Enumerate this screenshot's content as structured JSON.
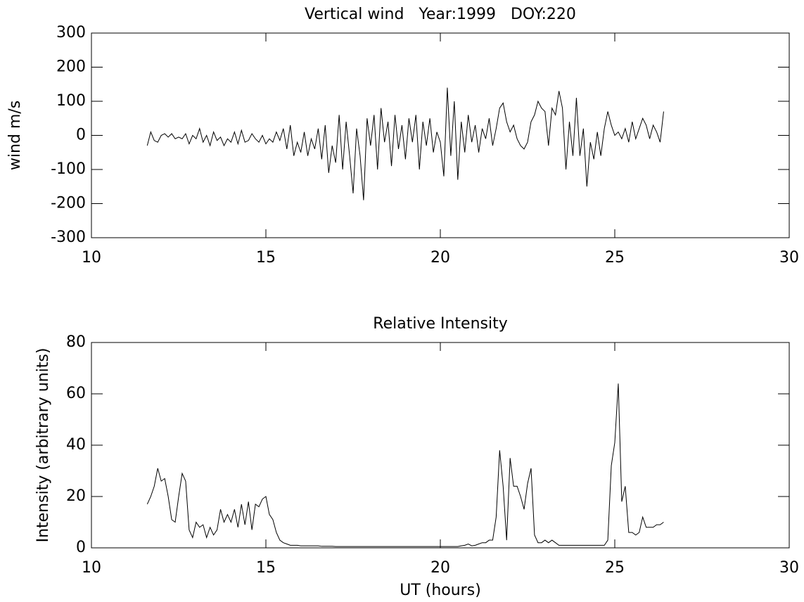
{
  "chart_data": [
    {
      "type": "line",
      "title": "Vertical wind   Year:1999   DOY:220",
      "ylabel": "wind m/s",
      "color": "#000000",
      "xlim": [
        10,
        30
      ],
      "xticks": [
        10,
        15,
        20,
        25,
        30
      ],
      "ylim": [
        -300,
        300
      ],
      "yticks": [
        -300,
        -200,
        -100,
        0,
        100,
        200,
        300
      ],
      "x": [
        11.6,
        11.7,
        11.8,
        11.9,
        12.0,
        12.1,
        12.2,
        12.3,
        12.4,
        12.5,
        12.6,
        12.7,
        12.8,
        12.9,
        13.0,
        13.1,
        13.2,
        13.3,
        13.4,
        13.5,
        13.6,
        13.7,
        13.8,
        13.9,
        14.0,
        14.1,
        14.2,
        14.3,
        14.4,
        14.5,
        14.6,
        14.7,
        14.8,
        14.9,
        15.0,
        15.1,
        15.2,
        15.3,
        15.4,
        15.5,
        15.6,
        15.7,
        15.8,
        15.9,
        16.0,
        16.1,
        16.2,
        16.3,
        16.4,
        16.5,
        16.6,
        16.7,
        16.8,
        16.9,
        17.0,
        17.1,
        17.2,
        17.3,
        17.4,
        17.5,
        17.6,
        17.7,
        17.8,
        17.9,
        18.0,
        18.1,
        18.2,
        18.3,
        18.4,
        18.5,
        18.6,
        18.7,
        18.8,
        18.9,
        19.0,
        19.1,
        19.2,
        19.3,
        19.4,
        19.5,
        19.6,
        19.7,
        19.8,
        19.9,
        20.0,
        20.1,
        20.2,
        20.3,
        20.4,
        20.5,
        20.6,
        20.7,
        20.8,
        20.9,
        21.0,
        21.1,
        21.2,
        21.3,
        21.4,
        21.5,
        21.6,
        21.7,
        21.8,
        21.9,
        22.0,
        22.1,
        22.2,
        22.3,
        22.4,
        22.5,
        22.6,
        22.7,
        22.8,
        22.9,
        23.0,
        23.1,
        23.2,
        23.3,
        23.4,
        23.5,
        23.6,
        23.7,
        23.8,
        23.9,
        24.0,
        24.1,
        24.2,
        24.3,
        24.4,
        24.5,
        24.6,
        24.7,
        24.8,
        24.9,
        25.0,
        25.1,
        25.2,
        25.3,
        25.4,
        25.5,
        25.6,
        25.7,
        25.8,
        25.9,
        26.0,
        26.1,
        26.2,
        26.3,
        26.4
      ],
      "values": [
        -30,
        10,
        -15,
        -20,
        0,
        5,
        -5,
        5,
        -10,
        -5,
        -10,
        5,
        -25,
        0,
        -10,
        20,
        -20,
        0,
        -30,
        10,
        -15,
        -5,
        -30,
        -10,
        -20,
        10,
        -25,
        15,
        -20,
        -15,
        5,
        -10,
        -20,
        0,
        -25,
        -10,
        -20,
        10,
        -15,
        20,
        -40,
        30,
        -60,
        -20,
        -50,
        10,
        -60,
        -10,
        -40,
        20,
        -70,
        30,
        -110,
        -30,
        -80,
        60,
        -100,
        40,
        -60,
        -170,
        20,
        -60,
        -190,
        50,
        -30,
        60,
        -100,
        80,
        -20,
        40,
        -90,
        60,
        -40,
        30,
        -70,
        50,
        -20,
        60,
        -100,
        40,
        -30,
        50,
        -50,
        10,
        -20,
        -120,
        140,
        -60,
        100,
        -130,
        40,
        -50,
        60,
        -20,
        30,
        -50,
        20,
        -10,
        50,
        -30,
        20,
        80,
        95,
        40,
        10,
        30,
        -10,
        -30,
        -40,
        -20,
        40,
        60,
        100,
        80,
        70,
        -30,
        80,
        60,
        130,
        80,
        -100,
        40,
        -60,
        110,
        -60,
        20,
        -150,
        -20,
        -70,
        10,
        -60,
        20,
        70,
        30,
        0,
        10,
        -10,
        20,
        -20,
        40,
        -10,
        20,
        50,
        30,
        -10,
        30,
        10,
        -20,
        70
      ]
    },
    {
      "type": "line",
      "title": "Relative Intensity",
      "xlabel": "UT (hours)",
      "ylabel": "Intensity (arbitrary units)",
      "color": "#000000",
      "xlim": [
        10,
        30
      ],
      "xticks": [
        10,
        15,
        20,
        25,
        30
      ],
      "ylim": [
        0,
        80
      ],
      "yticks": [
        0,
        20,
        40,
        60,
        80
      ],
      "x": [
        11.6,
        11.7,
        11.8,
        11.9,
        12.0,
        12.1,
        12.2,
        12.3,
        12.4,
        12.5,
        12.6,
        12.7,
        12.8,
        12.9,
        13.0,
        13.1,
        13.2,
        13.3,
        13.4,
        13.5,
        13.6,
        13.7,
        13.8,
        13.9,
        14.0,
        14.1,
        14.2,
        14.3,
        14.4,
        14.5,
        14.6,
        14.7,
        14.8,
        14.9,
        15.0,
        15.1,
        15.2,
        15.3,
        15.4,
        15.5,
        15.6,
        15.7,
        15.8,
        15.9,
        16.0,
        16.1,
        16.2,
        16.3,
        16.4,
        16.5,
        16.6,
        16.7,
        16.8,
        16.9,
        17.0,
        17.1,
        17.2,
        17.3,
        17.4,
        17.5,
        17.6,
        17.7,
        17.8,
        17.9,
        18.0,
        18.1,
        18.2,
        18.3,
        18.4,
        18.5,
        18.6,
        18.7,
        18.8,
        18.9,
        19.0,
        19.1,
        19.2,
        19.3,
        19.4,
        19.5,
        19.6,
        19.7,
        19.8,
        19.9,
        20.0,
        20.1,
        20.2,
        20.3,
        20.4,
        20.5,
        20.6,
        20.7,
        20.8,
        20.9,
        21.0,
        21.1,
        21.2,
        21.3,
        21.4,
        21.5,
        21.6,
        21.7,
        21.8,
        21.9,
        22.0,
        22.1,
        22.2,
        22.3,
        22.4,
        22.5,
        22.6,
        22.7,
        22.8,
        22.9,
        23.0,
        23.1,
        23.2,
        23.3,
        23.4,
        23.5,
        23.6,
        23.7,
        23.8,
        23.9,
        24.0,
        24.1,
        24.2,
        24.3,
        24.4,
        24.5,
        24.6,
        24.7,
        24.8,
        24.9,
        25.0,
        25.1,
        25.2,
        25.3,
        25.4,
        25.5,
        25.6,
        25.7,
        25.8,
        25.9,
        26.0,
        26.1,
        26.2,
        26.3,
        26.4
      ],
      "values": [
        17,
        20,
        24,
        31,
        26,
        27,
        20,
        11,
        10,
        20,
        29,
        26,
        7,
        4,
        10,
        8,
        9,
        4,
        8,
        5,
        7,
        15,
        10,
        13,
        10,
        15,
        8,
        17,
        9,
        18,
        7,
        17,
        16,
        19,
        20,
        13,
        11,
        6,
        3,
        2,
        1.5,
        1,
        1,
        1,
        0.8,
        0.8,
        0.8,
        0.8,
        0.8,
        0.8,
        0.6,
        0.6,
        0.6,
        0.6,
        0.5,
        0.5,
        0.5,
        0.5,
        0.5,
        0.5,
        0.5,
        0.5,
        0.5,
        0.5,
        0.5,
        0.5,
        0.5,
        0.5,
        0.5,
        0.5,
        0.5,
        0.5,
        0.5,
        0.5,
        0.5,
        0.5,
        0.5,
        0.5,
        0.5,
        0.5,
        0.5,
        0.5,
        0.5,
        0.5,
        0.5,
        0.5,
        0.5,
        0.5,
        0.5,
        0.5,
        0.8,
        1,
        1.5,
        0.8,
        1,
        1.5,
        2,
        2,
        3,
        3,
        12,
        38,
        24,
        3,
        35,
        24,
        24,
        20,
        15,
        25,
        31,
        5,
        2,
        2,
        3,
        2,
        3,
        2,
        1,
        1,
        1,
        1,
        1,
        1,
        1,
        1,
        1,
        1,
        1,
        1,
        1,
        1,
        3,
        32,
        41,
        64,
        18,
        24,
        6,
        6,
        5,
        6,
        12,
        8,
        8,
        8,
        9,
        9,
        10
      ]
    }
  ]
}
